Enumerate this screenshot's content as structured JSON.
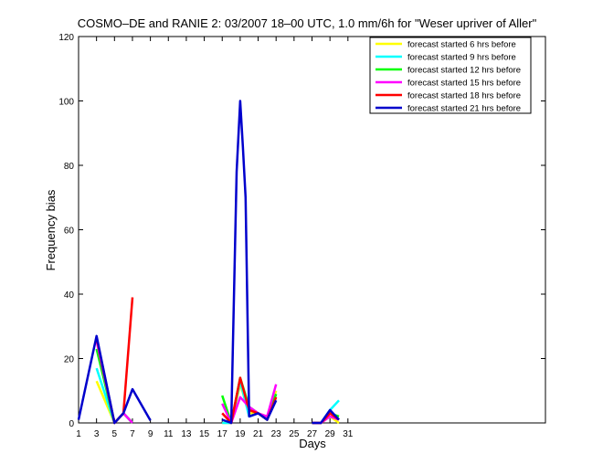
{
  "chart_data": {
    "type": "line",
    "title": "COSMO–DE and RANIE 2: 03/2007 18–00 UTC, 1.0 mm/6h for \"Weser upriver of Aller\"",
    "xlabel": "Days",
    "ylabel": "Frequency bias",
    "xlim": [
      1,
      53
    ],
    "ylim": [
      0,
      120
    ],
    "xticks": [
      1,
      3,
      5,
      7,
      9,
      11,
      13,
      15,
      17,
      19,
      21,
      23,
      25,
      27,
      29,
      31
    ],
    "yticks": [
      0,
      20,
      40,
      60,
      80,
      100,
      120
    ],
    "legend_position": "top-right",
    "series": [
      {
        "name": "forecast started 6 hrs before",
        "color": "#ffff00",
        "points": [
          [
            3,
            13
          ],
          [
            5,
            0
          ],
          [
            6,
            3
          ],
          [
            7,
            0
          ],
          [
            17,
            0
          ],
          [
            18,
            0
          ],
          [
            19,
            12
          ],
          [
            20,
            3
          ],
          [
            21,
            3
          ],
          [
            22,
            2
          ],
          [
            23,
            10
          ],
          [
            27,
            0
          ],
          [
            28,
            0
          ],
          [
            29,
            2
          ],
          [
            30,
            0
          ]
        ]
      },
      {
        "name": "forecast started 9 hrs before",
        "color": "#00ffff",
        "points": [
          [
            3,
            17
          ],
          [
            5,
            0
          ],
          [
            6,
            3
          ],
          [
            7,
            0
          ],
          [
            17,
            0
          ],
          [
            18,
            0
          ],
          [
            19,
            13
          ],
          [
            20,
            2
          ],
          [
            21,
            3
          ],
          [
            22,
            1
          ],
          [
            23,
            9
          ],
          [
            27,
            0
          ],
          [
            28,
            0
          ],
          [
            29,
            4
          ],
          [
            30,
            7
          ]
        ]
      },
      {
        "name": "forecast started 12 hrs before",
        "color": "#00ff00",
        "points": [
          [
            3,
            23
          ],
          [
            5,
            0
          ],
          [
            6,
            3
          ],
          [
            7,
            0
          ],
          [
            17,
            8.5
          ],
          [
            18,
            0
          ],
          [
            19,
            14
          ],
          [
            20,
            5
          ],
          [
            21,
            3
          ],
          [
            22,
            1
          ],
          [
            23,
            9
          ],
          [
            27,
            0
          ],
          [
            28,
            0
          ],
          [
            29,
            3
          ],
          [
            30,
            2
          ]
        ]
      },
      {
        "name": "forecast started 15 hrs before",
        "color": "#ff00ff",
        "points": [
          [
            3,
            25.5
          ],
          [
            5,
            0
          ],
          [
            6,
            3
          ],
          [
            7,
            0
          ],
          [
            17,
            6
          ],
          [
            18,
            0
          ],
          [
            19,
            8
          ],
          [
            20,
            5
          ],
          [
            21,
            3
          ],
          [
            22,
            2
          ],
          [
            23,
            12
          ],
          [
            27,
            0
          ],
          [
            28,
            0
          ],
          [
            29,
            2
          ],
          [
            30,
            1
          ]
        ]
      },
      {
        "name": "forecast started 18 hrs before",
        "color": "#ff0000",
        "points": [
          [
            3,
            26.5
          ],
          [
            5,
            0
          ],
          [
            6,
            3
          ],
          [
            7,
            39
          ],
          [
            17,
            3
          ],
          [
            18,
            0
          ],
          [
            19,
            14
          ],
          [
            20,
            4
          ],
          [
            21,
            3
          ],
          [
            22,
            1
          ],
          [
            23,
            8
          ],
          [
            27,
            0
          ],
          [
            28,
            0
          ],
          [
            29,
            3
          ],
          [
            30,
            1
          ]
        ]
      },
      {
        "name": "forecast started 21 hrs before",
        "color": "#0000cc",
        "points": [
          [
            1,
            1
          ],
          [
            3,
            27
          ],
          [
            5,
            0
          ],
          [
            6,
            3
          ],
          [
            7,
            10.5
          ],
          [
            9,
            0.8
          ],
          [
            17,
            1
          ],
          [
            18,
            0
          ],
          [
            18.6,
            78
          ],
          [
            19,
            100
          ],
          [
            19.3,
            86
          ],
          [
            19.6,
            70
          ],
          [
            20,
            2
          ],
          [
            21,
            3
          ],
          [
            22,
            1
          ],
          [
            23,
            7
          ],
          [
            27,
            0
          ],
          [
            28,
            0
          ],
          [
            29,
            4
          ],
          [
            30,
            1
          ]
        ]
      }
    ]
  }
}
